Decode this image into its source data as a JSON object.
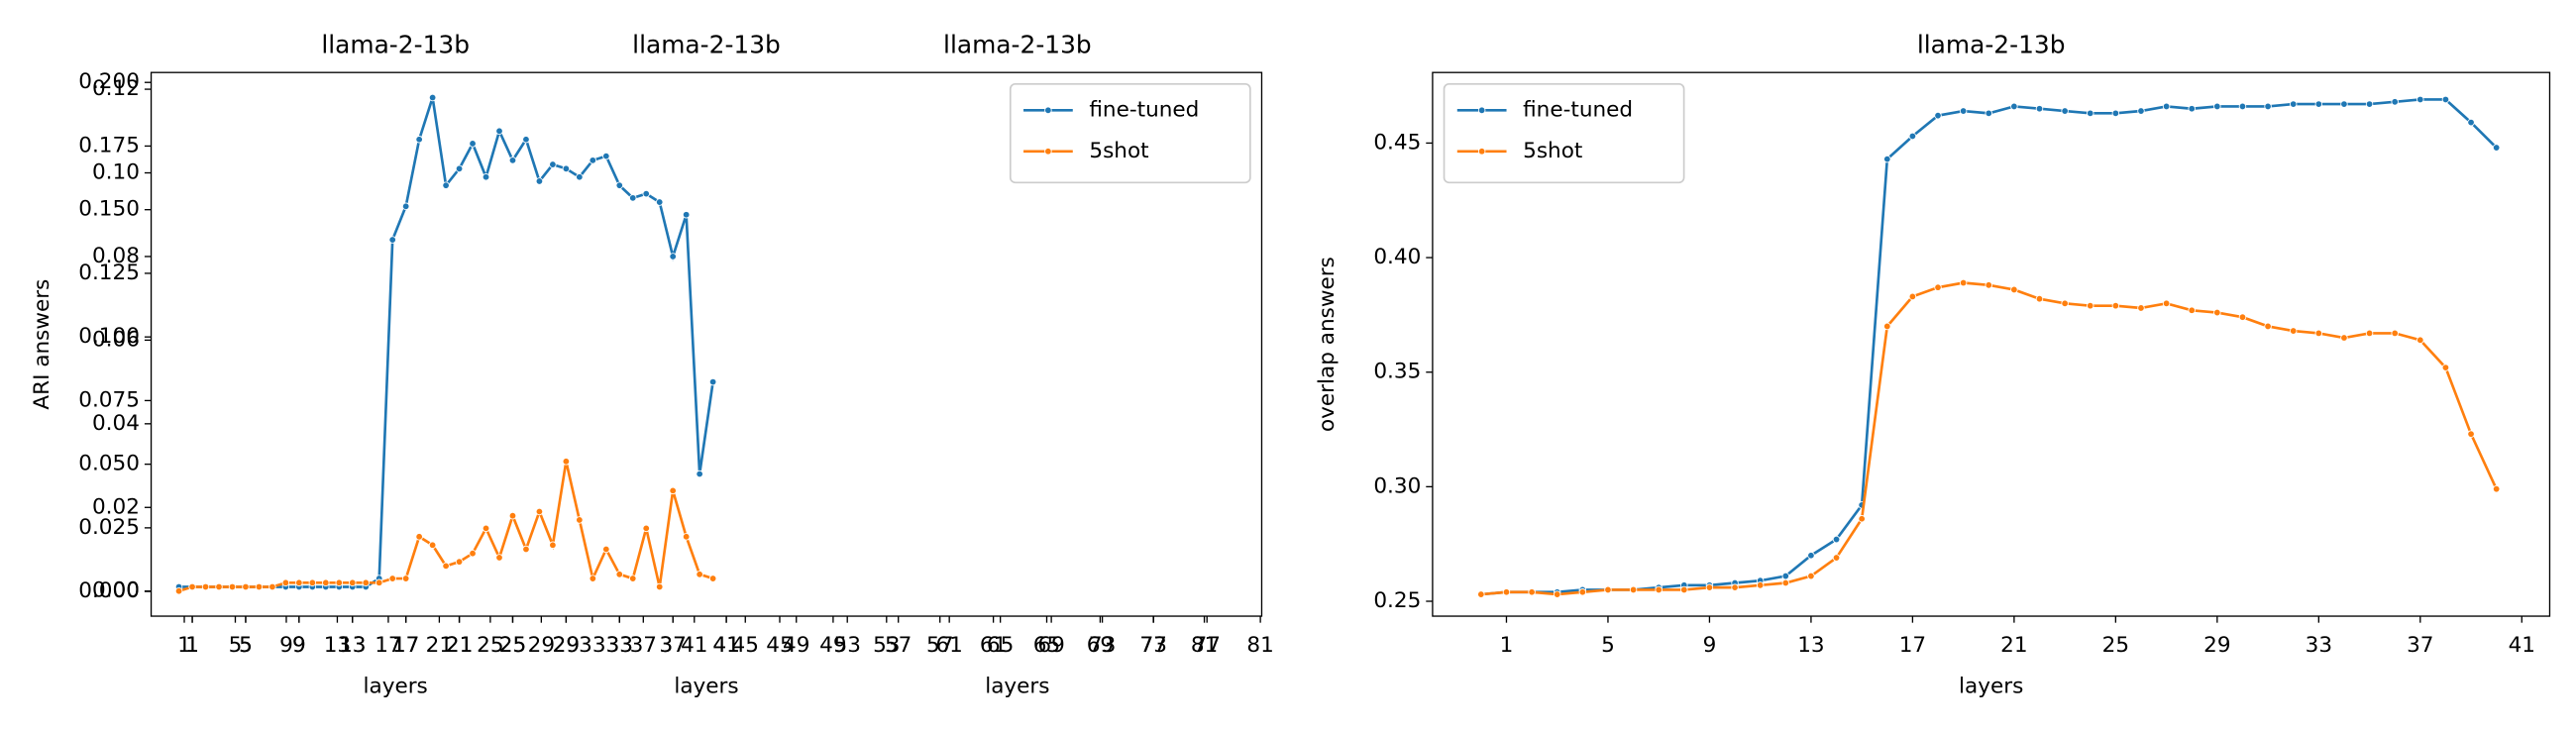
{
  "chart_data": [
    {
      "type": "line",
      "titles": [
        "llama-2-13b",
        "llama-2-13b",
        "llama-2-13b"
      ],
      "xlabels": [
        "layers",
        "layers",
        "layers"
      ],
      "ylabel": "ARI answers",
      "legend": "upper right",
      "xaxes": [
        {
          "xlim": [
            -2.08,
            81.1
          ],
          "xticks": [
            1,
            5,
            9,
            13,
            17,
            21,
            25,
            29,
            33,
            37,
            41
          ]
        },
        {
          "xlim": [
            -2.08,
            81.1
          ],
          "xticks": [
            1,
            5,
            9,
            13,
            17,
            21,
            25,
            29,
            33,
            37,
            41,
            45,
            49,
            53,
            57,
            61,
            65,
            69,
            73,
            77,
            81
          ]
        },
        {
          "xlim": [
            -1.6,
            85.5
          ],
          "xticks": [
            1,
            5,
            9,
            13,
            17,
            21,
            25,
            29,
            33,
            37,
            41,
            45,
            49,
            53,
            57,
            61,
            65,
            69,
            73,
            77,
            81
          ]
        }
      ],
      "yaxes": [
        {
          "ylim": [
            -0.006,
            0.124
          ],
          "yticks": [
            {
              "value": 0,
              "label": "0.00"
            },
            0.02,
            0.04,
            0.06,
            0.08,
            {
              "value": 0.1,
              "label": "0.10"
            },
            0.12
          ]
        },
        {
          "ylim": [
            -0.0097,
            0.2039
          ],
          "yticks": [
            {
              "value": 0,
              "label": "0.000"
            },
            0.025,
            {
              "value": 0.05,
              "label": "0.050"
            },
            0.075,
            {
              "value": 0.1,
              "label": "0.100"
            },
            0.125,
            {
              "value": 0.15,
              "label": "0.150"
            },
            0.175,
            {
              "value": 0.2,
              "label": "0.200"
            }
          ]
        }
      ],
      "x": [
        0,
        1,
        2,
        3,
        4,
        5,
        6,
        7,
        8,
        9,
        10,
        11,
        12,
        13,
        14,
        15,
        16,
        17,
        18,
        19,
        20,
        21,
        22,
        23,
        24,
        25,
        26,
        27,
        28,
        29,
        30,
        31,
        32,
        33,
        34,
        35,
        36,
        37,
        38,
        39,
        40
      ],
      "series": [
        {
          "name": "fine-tuned",
          "color": "#1f77b4",
          "values": [
            0.001,
            0.001,
            0.001,
            0.001,
            0.001,
            0.001,
            0.001,
            0.001,
            0.001,
            0.001,
            0.001,
            0.001,
            0.001,
            0.001,
            0.001,
            0.003,
            0.084,
            0.092,
            0.108,
            0.118,
            0.097,
            0.101,
            0.107,
            0.099,
            0.11,
            0.103,
            0.108,
            0.098,
            0.102,
            0.101,
            0.099,
            0.103,
            0.104,
            0.097,
            0.094,
            0.095,
            0.093,
            0.08,
            0.09,
            0.028,
            0.05
          ]
        },
        {
          "name": "5shot",
          "color": "#ff7f0e",
          "values": [
            0.0,
            0.001,
            0.001,
            0.001,
            0.001,
            0.001,
            0.001,
            0.001,
            0.002,
            0.002,
            0.002,
            0.002,
            0.002,
            0.002,
            0.002,
            0.002,
            0.003,
            0.003,
            0.013,
            0.011,
            0.006,
            0.007,
            0.009,
            0.015,
            0.008,
            0.018,
            0.01,
            0.019,
            0.011,
            0.031,
            0.017,
            0.003,
            0.01,
            0.004,
            0.003,
            0.015,
            0.001,
            0.024,
            0.013,
            0.004,
            0.003
          ]
        }
      ]
    },
    {
      "type": "line",
      "titles": [
        "llama-2-13b"
      ],
      "xlabels": [
        "layers"
      ],
      "ylabel": "overlap answers",
      "legend": "upper left",
      "xaxes": [
        {
          "xlim": [
            -1.91,
            42.1
          ],
          "xticks": [
            1,
            5,
            9,
            13,
            17,
            21,
            25,
            29,
            33,
            37,
            41
          ]
        }
      ],
      "yaxes": [
        {
          "ylim": [
            0.2435,
            0.4808
          ],
          "yticks": [
            0.25,
            {
              "value": 0.3,
              "label": "0.30"
            },
            0.35,
            {
              "value": 0.4,
              "label": "0.40"
            },
            0.45
          ]
        }
      ],
      "x": [
        0,
        1,
        2,
        3,
        4,
        5,
        6,
        7,
        8,
        9,
        10,
        11,
        12,
        13,
        14,
        15,
        16,
        17,
        18,
        19,
        20,
        21,
        22,
        23,
        24,
        25,
        26,
        27,
        28,
        29,
        30,
        31,
        32,
        33,
        34,
        35,
        36,
        37,
        38,
        39,
        40
      ],
      "series": [
        {
          "name": "fine-tuned",
          "color": "#1f77b4",
          "values": [
            0.253,
            0.254,
            0.254,
            0.254,
            0.255,
            0.255,
            0.255,
            0.256,
            0.257,
            0.257,
            0.258,
            0.259,
            0.261,
            0.27,
            0.277,
            0.292,
            0.443,
            0.453,
            0.462,
            0.464,
            0.463,
            0.466,
            0.465,
            0.464,
            0.463,
            0.463,
            0.464,
            0.466,
            0.465,
            0.466,
            0.466,
            0.466,
            0.467,
            0.467,
            0.467,
            0.467,
            0.468,
            0.469,
            0.469,
            0.459,
            0.448
          ]
        },
        {
          "name": "5shot",
          "color": "#ff7f0e",
          "values": [
            0.253,
            0.254,
            0.254,
            0.253,
            0.254,
            0.255,
            0.255,
            0.255,
            0.255,
            0.256,
            0.256,
            0.257,
            0.258,
            0.261,
            0.269,
            0.286,
            0.37,
            0.383,
            0.387,
            0.389,
            0.388,
            0.386,
            0.382,
            0.38,
            0.379,
            0.379,
            0.378,
            0.38,
            0.377,
            0.376,
            0.374,
            0.37,
            0.368,
            0.367,
            0.365,
            0.367,
            0.367,
            0.364,
            0.352,
            0.323,
            0.299
          ]
        }
      ]
    }
  ]
}
